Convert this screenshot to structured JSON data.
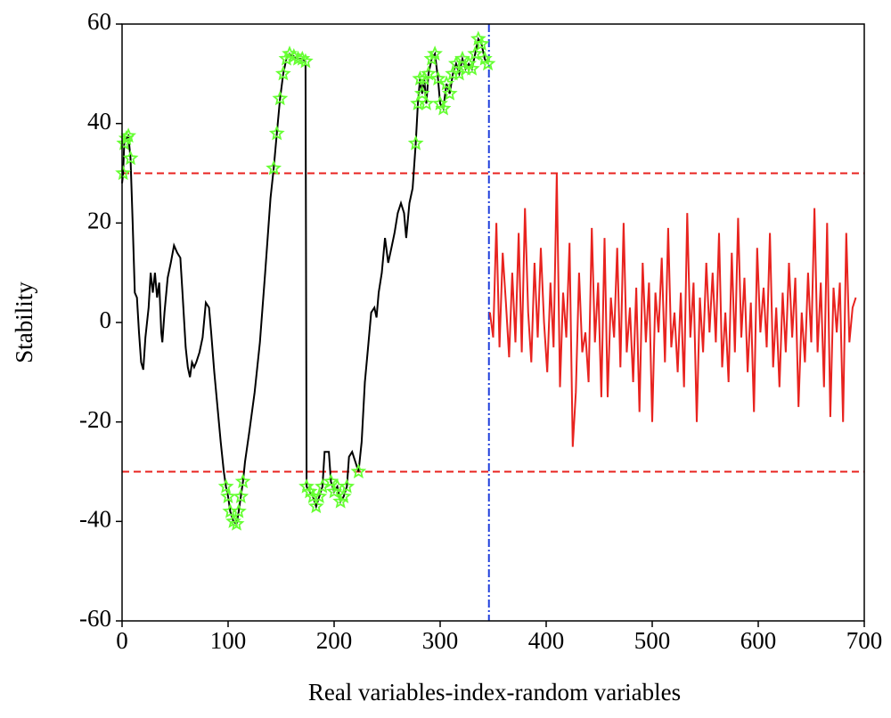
{
  "chart_data": {
    "type": "line",
    "xlabel": "Real variables-index-random variables",
    "ylabel": "Stability",
    "xlim": [
      0,
      700
    ],
    "ylim": [
      -60,
      60
    ],
    "xticks": [
      0,
      100,
      200,
      300,
      400,
      500,
      600,
      700
    ],
    "yticks": [
      -60,
      -40,
      -20,
      0,
      20,
      40,
      60
    ],
    "hlines": [
      30,
      -30
    ],
    "hline_color": "#e8231f",
    "vlines": [
      346
    ],
    "vline_color": "#1f3fdc",
    "series": [
      {
        "color": "#000000",
        "style": "line",
        "x": [
          0,
          1,
          2,
          4,
          6,
          8,
          10,
          12,
          14,
          16,
          18,
          20,
          22,
          25,
          27,
          29,
          31,
          33,
          35,
          37,
          38,
          40,
          43,
          46,
          49,
          52,
          55,
          57,
          60,
          62,
          64,
          66,
          68,
          70,
          73,
          76,
          79,
          82,
          84,
          87,
          90,
          93,
          96,
          98,
          100,
          102,
          105,
          108,
          110,
          112,
          114,
          116,
          120,
          125,
          130,
          135,
          140,
          143,
          146,
          149,
          152,
          155,
          158,
          162,
          166,
          170,
          173,
          174,
          177,
          180,
          183,
          186,
          189,
          191,
          195,
          197,
          200,
          203,
          206,
          209,
          212,
          214,
          217,
          220,
          223,
          226,
          229,
          232,
          235,
          238,
          240,
          242,
          245,
          248,
          251,
          254,
          257,
          260,
          263,
          266,
          268,
          271,
          274,
          277,
          279,
          281,
          283,
          285,
          287,
          289,
          292,
          295,
          298,
          300,
          303,
          306,
          309,
          312,
          315,
          318,
          321,
          324,
          327,
          330,
          333,
          336,
          339,
          342,
          345
        ],
        "values": [
          28,
          30,
          36,
          37,
          37.5,
          33,
          20,
          6,
          5,
          -2,
          -8,
          -9.5,
          -3,
          3,
          10,
          6,
          10,
          5,
          8,
          -2,
          -4,
          2,
          9,
          12,
          15.5,
          14,
          13,
          6,
          -5,
          -9,
          -11,
          -8,
          -9,
          -8,
          -6,
          -3,
          4,
          3,
          -2,
          -10,
          -17,
          -24,
          -30,
          -33,
          -35,
          -38,
          -40,
          -40.5,
          -38,
          -35,
          -32,
          -28,
          -22,
          -14,
          -4,
          10,
          25,
          31,
          38,
          45,
          50,
          53,
          54,
          53.5,
          53,
          53,
          52.5,
          -33,
          -34,
          -35,
          -37,
          -35,
          -33,
          -26,
          -26,
          -32,
          -34,
          -33,
          -36,
          -35,
          -33,
          -27,
          -26,
          -28,
          -30,
          -24,
          -12,
          -5,
          2,
          3,
          1,
          6,
          10,
          17,
          12,
          15,
          18,
          22,
          24,
          22,
          17,
          24,
          27,
          36,
          44,
          49,
          46,
          49,
          44,
          50,
          53,
          54,
          49,
          44,
          43,
          48,
          46,
          50,
          52,
          50,
          53,
          51,
          52,
          51,
          54,
          57,
          56,
          53,
          52
        ]
      },
      {
        "color": "#e8231f",
        "style": "line",
        "x": [
          347,
          350,
          353,
          356,
          359,
          362,
          365,
          368,
          371,
          374,
          377,
          380,
          383,
          386,
          389,
          392,
          395,
          398,
          401,
          404,
          407,
          410,
          413,
          416,
          419,
          422,
          425,
          428,
          431,
          434,
          437,
          440,
          443,
          446,
          449,
          452,
          455,
          458,
          461,
          464,
          467,
          470,
          473,
          476,
          479,
          482,
          485,
          488,
          491,
          494,
          497,
          500,
          503,
          506,
          509,
          512,
          515,
          518,
          521,
          524,
          527,
          530,
          533,
          536,
          539,
          542,
          545,
          548,
          551,
          554,
          557,
          560,
          563,
          566,
          569,
          572,
          575,
          578,
          581,
          584,
          587,
          590,
          593,
          596,
          599,
          602,
          605,
          608,
          611,
          614,
          617,
          620,
          623,
          626,
          629,
          632,
          635,
          638,
          641,
          644,
          647,
          650,
          653,
          656,
          659,
          662,
          665,
          668,
          671,
          674,
          677,
          680,
          683,
          686,
          689,
          692
        ],
        "values": [
          2,
          -3,
          20,
          -5,
          14,
          4,
          -7,
          10,
          -4,
          18,
          -6,
          23,
          2,
          -8,
          12,
          -3,
          15,
          0,
          -10,
          8,
          -5,
          30,
          -13,
          6,
          -3,
          16,
          -25,
          -14,
          10,
          -6,
          -2,
          -12,
          19,
          -4,
          8,
          -15,
          17,
          -15,
          5,
          -3,
          15,
          -9,
          20,
          -6,
          3,
          -12,
          7,
          -18,
          12,
          -4,
          8,
          -20,
          6,
          -2,
          13,
          -8,
          19,
          -5,
          2,
          -10,
          6,
          -13,
          22,
          -3,
          8,
          -20,
          5,
          -6,
          12,
          -2,
          10,
          -4,
          18,
          -9,
          2,
          -12,
          14,
          -6,
          21,
          -3,
          9,
          -10,
          4,
          -18,
          15,
          -2,
          7,
          -5,
          18,
          -9,
          3,
          -13,
          6,
          -6,
          12,
          -3,
          9,
          -17,
          2,
          -8,
          10,
          -4,
          23,
          -6,
          8,
          -13,
          20,
          -19,
          7,
          -2,
          8,
          -20,
          18,
          -4,
          3,
          5
        ]
      },
      {
        "color": "#66ff33",
        "style": "star",
        "x": [
          1,
          2,
          4,
          6,
          8,
          98,
          100,
          102,
          105,
          108,
          110,
          112,
          114,
          143,
          146,
          149,
          152,
          155,
          158,
          162,
          166,
          170,
          173,
          174,
          177,
          180,
          183,
          186,
          189,
          197,
          200,
          203,
          206,
          209,
          212,
          223,
          277,
          279,
          281,
          283,
          285,
          287,
          289,
          292,
          295,
          298,
          300,
          303,
          306,
          309,
          312,
          315,
          318,
          321,
          324,
          327,
          330,
          333,
          336,
          339,
          342,
          345
        ],
        "values": [
          30,
          36,
          37,
          37.5,
          33,
          -33,
          -35,
          -38,
          -40,
          -40.5,
          -38,
          -35,
          -32,
          31,
          38,
          45,
          50,
          53,
          54,
          53.5,
          53,
          53,
          52.5,
          -33,
          -34,
          -35,
          -37,
          -35,
          -33,
          -32,
          -34,
          -33,
          -36,
          -35,
          -33,
          -30,
          36,
          44,
          49,
          46,
          49,
          44,
          50,
          53,
          54,
          49,
          44,
          43,
          48,
          46,
          50,
          52,
          50,
          53,
          51,
          52,
          51,
          54,
          57,
          56,
          53,
          52
        ]
      }
    ]
  }
}
